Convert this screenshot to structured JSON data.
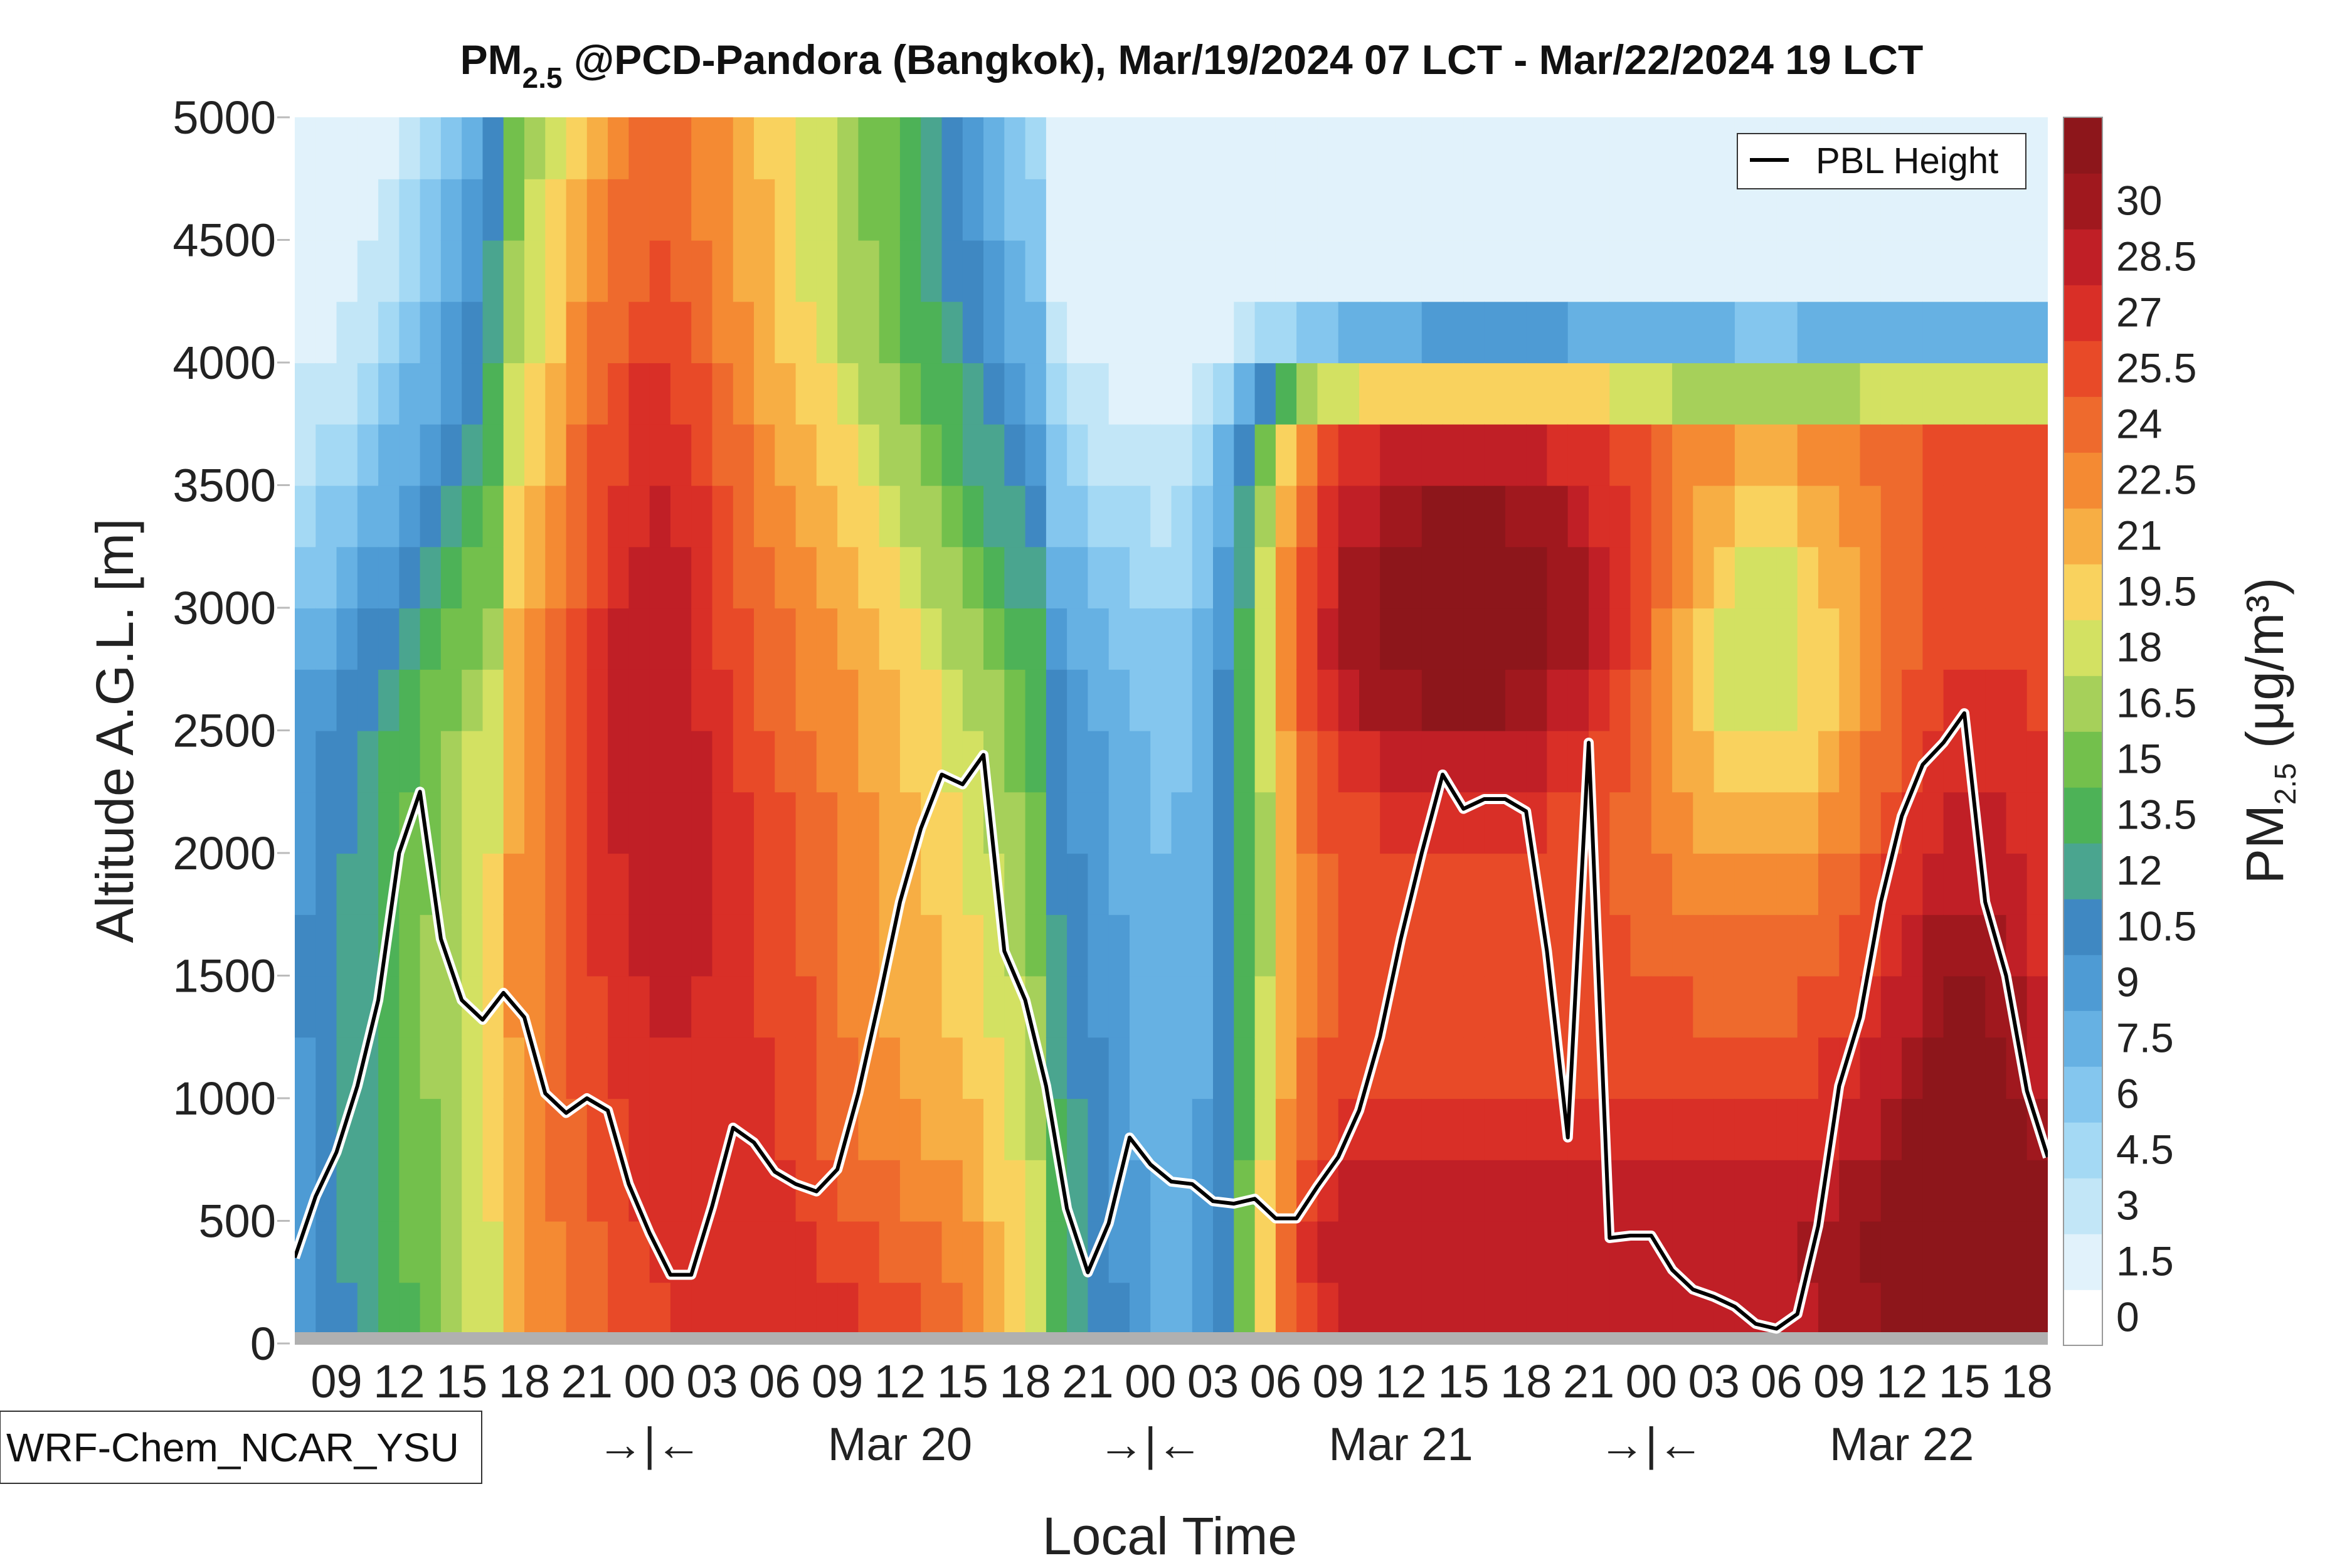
{
  "chart_data": {
    "type": "heatmap",
    "title_main": "PM",
    "title_sub": "2.5",
    "title_rest": " @PCD-Pandora (Bangkok), Mar/19/2024 07 LCT - Mar/22/2024 19 LCT",
    "ylabel": "Altitude A.G.L. [m]",
    "xlabel": "Local Time",
    "ylim": [
      0,
      5000
    ],
    "yticks": [
      "0",
      "500",
      "1000",
      "1500",
      "2000",
      "2500",
      "3000",
      "3500",
      "4000",
      "4500",
      "5000"
    ],
    "x_hours_range": [
      0,
      84
    ],
    "xticks": [
      {
        "h": 2,
        "label": "09"
      },
      {
        "h": 5,
        "label": "12"
      },
      {
        "h": 8,
        "label": "15"
      },
      {
        "h": 11,
        "label": "18"
      },
      {
        "h": 14,
        "label": "21"
      },
      {
        "h": 17,
        "label": "00"
      },
      {
        "h": 20,
        "label": "03"
      },
      {
        "h": 23,
        "label": "06"
      },
      {
        "h": 26,
        "label": "09"
      },
      {
        "h": 29,
        "label": "12"
      },
      {
        "h": 32,
        "label": "15"
      },
      {
        "h": 35,
        "label": "18"
      },
      {
        "h": 38,
        "label": "21"
      },
      {
        "h": 41,
        "label": "00"
      },
      {
        "h": 44,
        "label": "03"
      },
      {
        "h": 47,
        "label": "06"
      },
      {
        "h": 50,
        "label": "09"
      },
      {
        "h": 53,
        "label": "12"
      },
      {
        "h": 56,
        "label": "15"
      },
      {
        "h": 59,
        "label": "18"
      },
      {
        "h": 62,
        "label": "21"
      },
      {
        "h": 65,
        "label": "00"
      },
      {
        "h": 68,
        "label": "03"
      },
      {
        "h": 71,
        "label": "06"
      },
      {
        "h": 74,
        "label": "09"
      },
      {
        "h": 77,
        "label": "12"
      },
      {
        "h": 80,
        "label": "15"
      },
      {
        "h": 83,
        "label": "18"
      }
    ],
    "day_labels": [
      {
        "h": 17,
        "label": "→|←"
      },
      {
        "h": 29,
        "label": "Mar 20"
      },
      {
        "h": 41,
        "label": "→|←"
      },
      {
        "h": 53,
        "label": "Mar 21"
      },
      {
        "h": 65,
        "label": "→|←"
      },
      {
        "h": 77,
        "label": "Mar 22"
      }
    ],
    "colorbar": {
      "label_main": "PM",
      "label_sub": "2.5",
      "label_rest": " (μg/m³)",
      "ticks": [
        "0",
        "1.5",
        "3",
        "4.5",
        "6",
        "7.5",
        "9",
        "10.5",
        "12",
        "13.5",
        "15",
        "16.5",
        "18",
        "19.5",
        "21",
        "22.5",
        "24",
        "25.5",
        "27",
        "28.5",
        "30"
      ],
      "colors": [
        "#ffffff",
        "#e1f2fb",
        "#c2e6f7",
        "#a4d9f4",
        "#84c6ee",
        "#66b1e3",
        "#4e9bd4",
        "#3f88c2",
        "#4aa58f",
        "#4db257",
        "#73c04c",
        "#a6d05a",
        "#d3e162",
        "#f9d25e",
        "#f7ae44",
        "#f48a33",
        "#ee6a2d",
        "#e84a28",
        "#d92f27",
        "#c01f26",
        "#a0181e",
        "#8d161b"
      ]
    },
    "legend": {
      "label": "PBL Height",
      "placement": "top-right"
    },
    "model_label": "WRF-Chem_NCAR_YSU",
    "pbl_height": {
      "hours": [
        0,
        1,
        2,
        3,
        4,
        5,
        6,
        7,
        8,
        9,
        10,
        11,
        12,
        13,
        14,
        15,
        16,
        17,
        18,
        19,
        20,
        21,
        22,
        23,
        24,
        25,
        26,
        27,
        28,
        29,
        30,
        31,
        32,
        33,
        34,
        35,
        36,
        37,
        38,
        39,
        40,
        41,
        42,
        43,
        44,
        45,
        46,
        47,
        48,
        49,
        50,
        51,
        52,
        53,
        54,
        55,
        56,
        57,
        58,
        59,
        60,
        61,
        62,
        63,
        64,
        65,
        66,
        67,
        68,
        69,
        70,
        71,
        72,
        73,
        74,
        75,
        76,
        77,
        78,
        79,
        80,
        81,
        82,
        83,
        84
      ],
      "values": [
        350,
        600,
        780,
        1050,
        1400,
        2000,
        2250,
        1650,
        1400,
        1320,
        1430,
        1330,
        1020,
        940,
        1000,
        950,
        650,
        450,
        280,
        280,
        560,
        880,
        820,
        700,
        650,
        620,
        710,
        1020,
        1400,
        1800,
        2100,
        2320,
        2280,
        2400,
        1600,
        1400,
        1050,
        550,
        290,
        490,
        840,
        730,
        660,
        650,
        580,
        570,
        590,
        510,
        510,
        640,
        760,
        950,
        1250,
        1650,
        2000,
        2320,
        2180,
        2220,
        2220,
        2170,
        1600,
        840,
        2450,
        430,
        440,
        440,
        300,
        220,
        190,
        150,
        80,
        60,
        120,
        480,
        1050,
        1330,
        1800,
        2150,
        2360,
        2450,
        2570,
        1800,
        1500,
        1030,
        760
      ]
    },
    "field_description_values": {
      "note_units": "μg/m³",
      "grid_hours_step": 1,
      "grid_altitude_step_m": 250
    }
  }
}
